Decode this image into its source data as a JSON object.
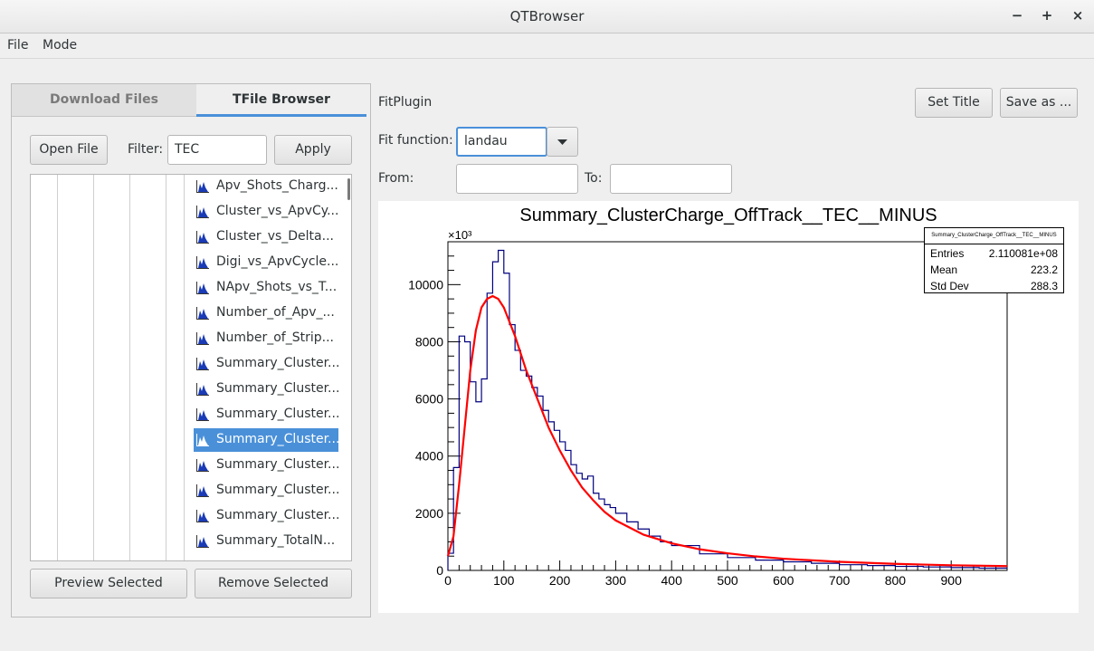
{
  "window": {
    "title": "QTBrowser",
    "minimize_glyph": "−",
    "maximize_glyph": "+",
    "close_glyph": "×"
  },
  "menu": {
    "file": "File",
    "mode": "Mode"
  },
  "tabs": {
    "download": "Download Files",
    "browser": "TFile Browser"
  },
  "browser": {
    "open_file": "Open File",
    "filter_label": "Filter:",
    "filter_value": "TEC",
    "apply": "Apply",
    "preview": "Preview Selected",
    "remove": "Remove Selected",
    "items": [
      "Apv_Shots_Charg...",
      "Cluster_vs_ApvCy...",
      "Cluster_vs_Delta...",
      "Digi_vs_ApvCycle...",
      "NApv_Shots_vs_T...",
      "Number_of_Apv_...",
      "Number_of_Strip...",
      "Summary_Cluster...",
      "Summary_Cluster...",
      "Summary_Cluster...",
      "Summary_Cluster...",
      "Summary_Cluster...",
      "Summary_Cluster...",
      "Summary_Cluster...",
      "Summary_TotalN..."
    ],
    "selected_index": 10
  },
  "fitplugin": {
    "title": "FitPlugin",
    "set_title": "Set Title",
    "save_as": "Save as ...",
    "fit_function_label": "Fit function:",
    "fit_function_value": "landau",
    "from_label": "From:",
    "to_label": "To:",
    "from_value": "",
    "to_value": ""
  },
  "stats": {
    "header": "Summary_ClusterCharge_OffTrack__TEC__MINUS",
    "entries_label": "Entries",
    "entries_value": "2.110081e+08",
    "mean_label": "Mean",
    "mean_value": "223.2",
    "stddev_label": "Std Dev",
    "stddev_value": "288.3"
  },
  "colors": {
    "accent": "#4a90d9",
    "histogram": "#00007f",
    "fit": "#ff0000"
  },
  "chart_data": {
    "type": "line",
    "title": "Summary_ClusterCharge_OffTrack__TEC__MINUS",
    "xlabel": "",
    "ylabel": "",
    "y_multiplier_label": "×10³",
    "xlim": [
      0,
      1000
    ],
    "ylim": [
      0,
      11500
    ],
    "x_ticks": [
      0,
      100,
      200,
      300,
      400,
      500,
      600,
      700,
      800,
      900
    ],
    "y_ticks": [
      0,
      2000,
      4000,
      6000,
      8000,
      10000
    ],
    "bin_width": 10,
    "series": [
      {
        "kind": "histogram",
        "bin_lows": [
          0,
          10,
          20,
          30,
          40,
          50,
          60,
          70,
          80,
          90,
          100,
          110,
          120,
          130,
          140,
          150,
          160,
          170,
          180,
          190,
          200,
          210,
          220,
          230,
          240,
          250,
          260,
          270,
          280,
          290,
          300,
          320,
          340,
          360,
          380,
          400,
          450,
          500,
          550,
          600,
          650,
          700,
          750,
          800,
          850,
          900,
          950
        ],
        "values": [
          600,
          3600,
          8200,
          8000,
          6600,
          5900,
          6700,
          9700,
          10800,
          11200,
          10400,
          8600,
          7700,
          7000,
          6800,
          6400,
          6100,
          5600,
          5200,
          4900,
          4500,
          4200,
          3700,
          3400,
          3200,
          3300,
          2700,
          2500,
          2300,
          2200,
          2000,
          1700,
          1450,
          1200,
          1000,
          870,
          580,
          450,
          360,
          300,
          250,
          200,
          170,
          140,
          120,
          100,
          80
        ]
      },
      {
        "kind": "fit",
        "x": [
          0,
          10,
          20,
          30,
          40,
          50,
          60,
          70,
          80,
          90,
          100,
          110,
          120,
          130,
          140,
          150,
          160,
          180,
          200,
          220,
          240,
          260,
          280,
          300,
          350,
          400,
          450,
          500,
          550,
          600,
          700,
          800,
          900,
          1000
        ],
        "y": [
          500,
          1200,
          3000,
          5000,
          7000,
          8400,
          9200,
          9500,
          9600,
          9500,
          9200,
          8700,
          8200,
          7600,
          7000,
          6500,
          6000,
          5000,
          4200,
          3500,
          2900,
          2450,
          2050,
          1750,
          1250,
          950,
          740,
          600,
          490,
          410,
          300,
          230,
          180,
          150
        ]
      }
    ]
  }
}
